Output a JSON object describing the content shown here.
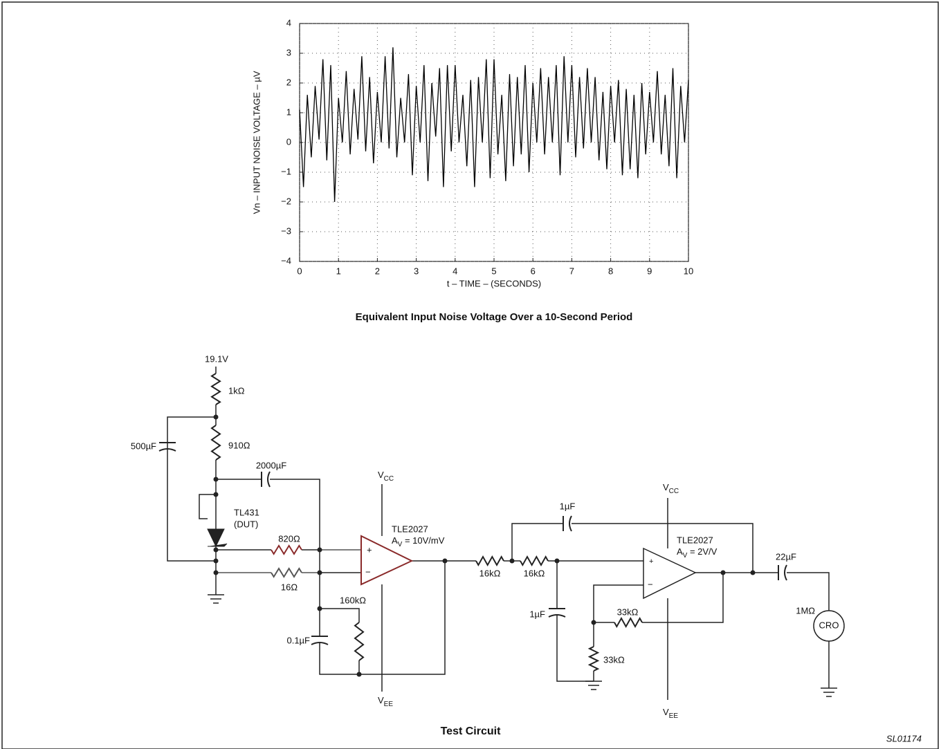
{
  "chart_data": {
    "type": "line",
    "title": "Equivalent Input Noise Voltage Over a 10-Second Period",
    "x_label": "t – TIME – (SECONDS)",
    "y_label": "Vn – INPUT NOISE VOLTAGE – µV",
    "color": "#000000",
    "grid": true,
    "x": [
      0,
      0.1,
      0.2,
      0.3,
      0.4,
      0.5,
      0.6,
      0.7,
      0.8,
      0.9,
      1,
      1.1,
      1.2,
      1.3,
      1.4,
      1.5,
      1.6,
      1.7,
      1.8,
      1.9,
      2,
      2.1,
      2.2,
      2.3,
      2.4,
      2.5,
      2.6,
      2.7,
      2.8,
      2.9,
      3,
      3.1,
      3.2,
      3.3,
      3.4,
      3.5,
      3.6,
      3.7,
      3.8,
      3.9,
      4,
      4.1,
      4.2,
      4.3,
      4.4,
      4.5,
      4.6,
      4.7,
      4.8,
      4.9,
      5,
      5.1,
      5.2,
      5.3,
      5.4,
      5.5,
      5.6,
      5.7,
      5.8,
      5.9,
      6,
      6.1,
      6.2,
      6.3,
      6.4,
      6.5,
      6.6,
      6.7,
      6.8,
      6.9,
      7,
      7.1,
      7.2,
      7.3,
      7.4,
      7.5,
      7.6,
      7.7,
      7.8,
      7.9,
      8,
      8.1,
      8.2,
      8.3,
      8.4,
      8.5,
      8.6,
      8.7,
      8.8,
      8.9,
      9,
      9.1,
      9.2,
      9.3,
      9.4,
      9.5,
      9.6,
      9.7,
      9.8,
      9.9,
      10
    ],
    "values": [
      1.1,
      -1.5,
      1.6,
      -0.5,
      1.9,
      0.1,
      2.8,
      -0.6,
      2.6,
      -2.0,
      1.5,
      0.0,
      2.4,
      -0.4,
      1.8,
      0.1,
      2.9,
      -0.3,
      2.2,
      -0.7,
      1.7,
      0.0,
      2.9,
      -0.2,
      3.2,
      -0.5,
      1.5,
      0.0,
      2.3,
      -1.1,
      1.9,
      0.0,
      2.6,
      -1.3,
      2.0,
      0.2,
      2.5,
      -1.5,
      2.6,
      -0.3,
      2.6,
      0.0,
      1.6,
      -0.8,
      2.1,
      -1.5,
      2.2,
      0.0,
      2.8,
      -1.2,
      2.8,
      -0.4,
      1.6,
      -1.3,
      2.3,
      -0.8,
      2.2,
      -0.4,
      2.6,
      -1.0,
      2.0,
      0.0,
      2.5,
      -0.4,
      2.2,
      0.0,
      2.6,
      -1.1,
      2.9,
      0.0,
      2.6,
      -0.5,
      2.2,
      -0.2,
      2.5,
      0.0,
      2.2,
      -0.6,
      1.7,
      -0.9,
      1.9,
      0.0,
      2.1,
      -1.1,
      1.8,
      -0.9,
      1.6,
      -1.2,
      2.0,
      -0.4,
      1.7,
      0.0,
      2.4,
      -0.4,
      1.6,
      -0.8,
      2.5,
      -1.2,
      1.9,
      0.0,
      2.1
    ],
    "xlim": [
      0,
      10
    ],
    "xticks": [
      0,
      1,
      2,
      3,
      4,
      5,
      6,
      7,
      8,
      9,
      10
    ],
    "ylim": [
      -4,
      4
    ],
    "yticks": [
      {
        "value": -4,
        "label": "−4"
      },
      {
        "value": -3,
        "label": "−3"
      },
      {
        "value": -2,
        "label": "−2"
      },
      {
        "value": -1,
        "label": "−1"
      },
      0,
      1,
      2,
      3,
      4
    ]
  },
  "circuit": {
    "supply": "19.1V",
    "r_1k": "1kΩ",
    "r_910": "910Ω",
    "c_500": "500µF",
    "c_2000": "2000µF",
    "dut": [
      "TL431",
      "(DUT)"
    ],
    "r_820": "820Ω",
    "r_16": "16Ω",
    "r_160k": "160kΩ",
    "c_01": "0.1µF",
    "vcc_1": {
      "main": "V",
      "sub": "CC"
    },
    "vee_1": {
      "main": "V",
      "sub": "EE"
    },
    "amp_1": {
      "name": "TLE2027",
      "main": "A",
      "sub": "V",
      "rest": " = 10V/mV"
    },
    "r_16k_a": "16kΩ",
    "r_16k_b": "16kΩ",
    "c_1_top": "1µF",
    "c_1_gnd": "1µF",
    "r_33k_fb": "33kΩ",
    "r_33k_gnd": "33kΩ",
    "vcc_2": {
      "main": "V",
      "sub": "CC"
    },
    "vee_2": {
      "main": "V",
      "sub": "EE"
    },
    "amp_2": {
      "name": "TLE2027",
      "main": "A",
      "sub": "V",
      "rest": " = 2V/V"
    },
    "c_22": "22µF",
    "r_1m": "1MΩ",
    "cro": "CRO",
    "plus_1": "+",
    "minus_1": "−",
    "plus_2": "+",
    "minus_2": "−",
    "title": "Test Circuit",
    "code": "SL01174"
  }
}
